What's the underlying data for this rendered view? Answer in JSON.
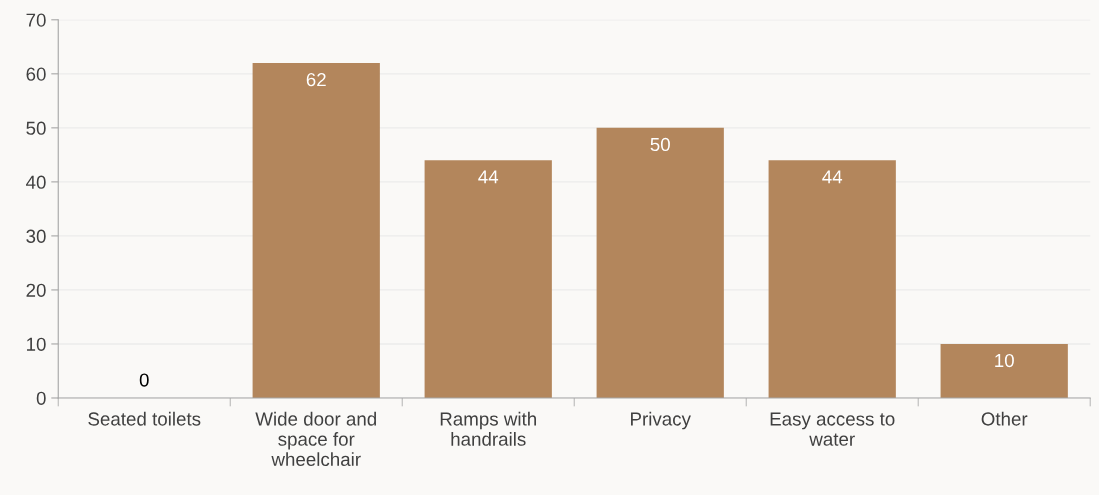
{
  "chart_data": {
    "type": "bar",
    "categories": [
      "Seated toilets",
      "Wide door and space for wheelchair",
      "Ramps with handrails",
      "Privacy",
      "Easy access to water",
      "Other"
    ],
    "values": [
      0,
      62,
      44,
      50,
      44,
      10
    ],
    "color": "#b3865c",
    "ylim": [
      0,
      70
    ],
    "yticks": [
      0,
      10,
      20,
      30,
      40,
      50,
      60,
      70
    ],
    "grid": "y",
    "data_labels": true,
    "legend": false
  }
}
